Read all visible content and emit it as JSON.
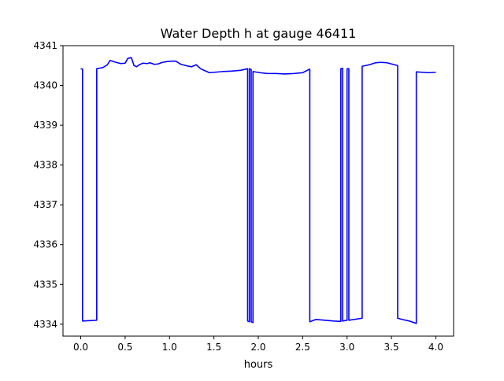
{
  "chart_data": {
    "type": "line",
    "title": "Water Depth h at gauge 46411",
    "xlabel": "hours",
    "ylabel": "",
    "xlim": [
      -0.2,
      4.2
    ],
    "ylim": [
      4333.7,
      4341.0
    ],
    "xticks": [
      0.0,
      0.5,
      1.0,
      1.5,
      2.0,
      2.5,
      3.0,
      3.5,
      4.0
    ],
    "xtick_labels": [
      "0.0",
      "0.5",
      "1.0",
      "1.5",
      "2.0",
      "2.5",
      "3.0",
      "3.5",
      "4.0"
    ],
    "yticks": [
      4334,
      4335,
      4336,
      4337,
      4338,
      4339,
      4340,
      4341
    ],
    "ytick_labels": [
      "4334",
      "4335",
      "4336",
      "4337",
      "4338",
      "4339",
      "4340",
      "4341"
    ],
    "grid": false,
    "series": [
      {
        "name": "",
        "color": "#0000ff",
        "x": [
          0.0,
          0.02,
          0.02,
          0.18,
          0.18,
          0.25,
          0.3,
          0.33,
          0.37,
          0.4,
          0.45,
          0.5,
          0.53,
          0.57,
          0.6,
          0.63,
          0.66,
          0.7,
          0.75,
          0.78,
          0.83,
          0.87,
          0.92,
          0.97,
          1.02,
          1.07,
          1.13,
          1.2,
          1.25,
          1.3,
          1.35,
          1.4,
          1.45,
          1.5,
          1.55,
          1.6,
          1.7,
          1.8,
          1.88,
          1.88,
          1.9,
          1.9,
          1.92,
          1.92,
          1.94,
          1.94,
          2.02,
          2.02,
          2.1,
          2.2,
          2.3,
          2.4,
          2.5,
          2.57,
          2.58,
          2.58,
          2.65,
          2.75,
          2.85,
          2.93,
          2.93,
          2.95,
          2.95,
          3.0,
          3.0,
          3.02,
          3.02,
          3.17,
          3.17,
          3.25,
          3.32,
          3.38,
          3.45,
          3.5,
          3.57,
          3.57,
          3.62,
          3.7,
          3.78,
          3.78,
          3.85,
          3.92,
          4.0
        ],
        "y": [
          4340.42,
          4340.41,
          4334.08,
          4334.1,
          4340.42,
          4340.45,
          4340.52,
          4340.63,
          4340.6,
          4340.58,
          4340.55,
          4340.56,
          4340.68,
          4340.7,
          4340.5,
          4340.47,
          4340.52,
          4340.56,
          4340.55,
          4340.57,
          4340.53,
          4340.54,
          4340.58,
          4340.6,
          4340.61,
          4340.61,
          4340.53,
          4340.49,
          4340.47,
          4340.52,
          4340.42,
          4340.37,
          4340.32,
          4340.33,
          4340.34,
          4340.35,
          4340.36,
          4340.38,
          4340.42,
          4334.08,
          4334.06,
          4340.42,
          4340.4,
          4334.06,
          4334.04,
          4340.35,
          4340.32,
          4340.32,
          4340.3,
          4340.3,
          4340.29,
          4340.3,
          4340.32,
          4340.4,
          4340.41,
          4334.06,
          4334.12,
          4334.1,
          4334.08,
          4334.07,
          4340.42,
          4340.43,
          4334.08,
          4334.1,
          4340.42,
          4340.42,
          4334.1,
          4334.15,
          4340.48,
          4340.52,
          4340.57,
          4340.58,
          4340.57,
          4340.54,
          4340.5,
          4334.15,
          4334.12,
          4334.08,
          4334.02,
          4340.34,
          4340.33,
          4340.32,
          4340.33
        ]
      }
    ]
  }
}
